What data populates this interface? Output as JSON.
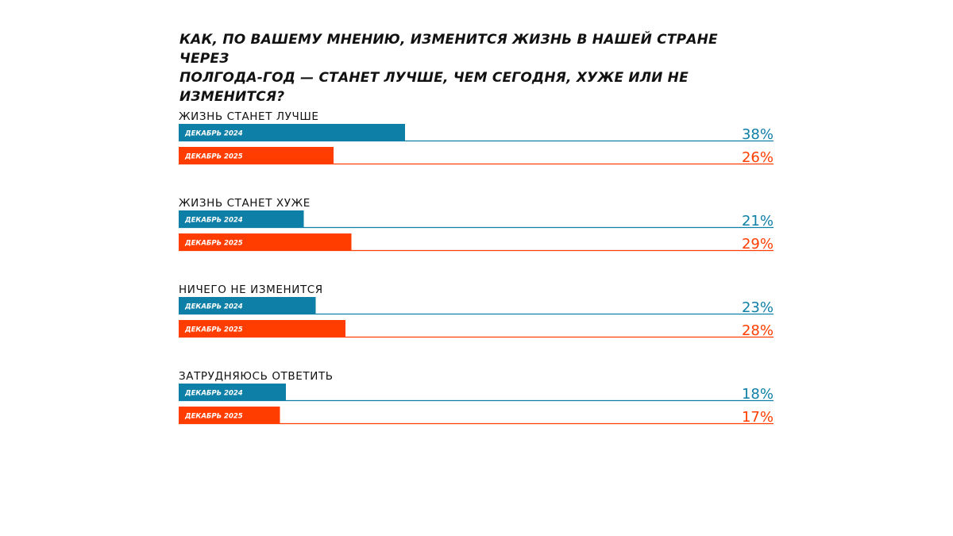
{
  "chart_data": {
    "type": "bar",
    "orientation": "horizontal",
    "title_lines": [
      "КАК, ПО ВАШЕМУ МНЕНИЮ, ИЗМЕНИТСЯ ЖИЗНЬ В НАШЕЙ СТРАНЕ ЧЕРЕЗ",
      "ПОЛГОДА-ГОД — СТАНЕТ ЛУЧШЕ, ЧЕМ СЕГОДНЯ, ХУЖЕ ИЛИ НЕ ИЗМЕНИТСЯ?"
    ],
    "categories": [
      "ЖИЗНЬ СТАНЕТ ЛУЧШЕ",
      "ЖИЗНЬ СТАНЕТ ХУЖЕ",
      "НИЧЕГО НЕ ИЗМЕНИТСЯ",
      "ЗАТРУДНЯЮСЬ ОТВЕТИТЬ"
    ],
    "series": [
      {
        "name": "ДЕКАБРЬ 2024",
        "color": "#0E7FA6",
        "values": [
          38,
          21,
          23,
          18
        ]
      },
      {
        "name": "ДЕКАБРЬ 2025",
        "color": "#FF3D00",
        "values": [
          26,
          29,
          28,
          17
        ]
      }
    ],
    "value_suffix": "%",
    "xlim": [
      0,
      100
    ],
    "grid": false,
    "legend": "inline"
  }
}
